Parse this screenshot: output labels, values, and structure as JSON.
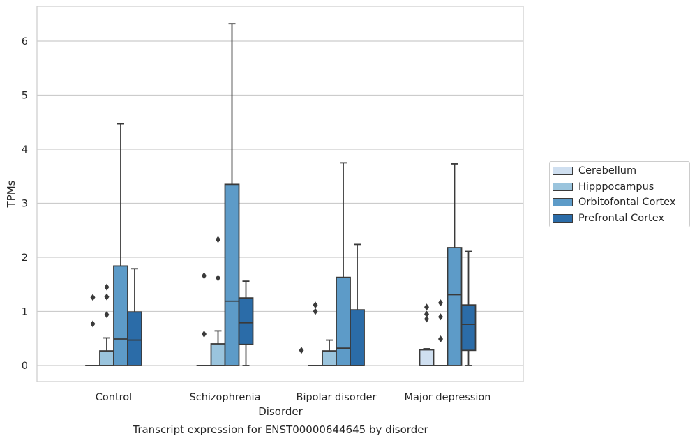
{
  "chart_data": {
    "type": "boxplot",
    "title": "Transcript expression for ENST00000644645 by disorder",
    "xlabel": "Disorder",
    "ylabel": "TPMs",
    "ylim": [
      -0.3,
      6.6
    ],
    "yticks": [
      0,
      1,
      2,
      3,
      4,
      5,
      6
    ],
    "grid": "horizontal",
    "legend_position": "right",
    "categories": [
      "Control",
      "Schizophrenia",
      "Bipolar disorder",
      "Major depression"
    ],
    "series": [
      {
        "name": "Cerebellum",
        "color": "#cfdff0",
        "boxes": [
          {
            "whislo": 0,
            "q1": 0,
            "med": 0,
            "q3": 0,
            "whishi": 0,
            "fliers": []
          },
          {
            "whislo": 0,
            "q1": 0,
            "med": 0,
            "q3": 0,
            "whishi": 0,
            "fliers": []
          },
          {
            "whislo": 0,
            "q1": 0,
            "med": 0,
            "q3": 0,
            "whishi": 0,
            "fliers": [
              0.28
            ]
          },
          {
            "whislo": 0,
            "q1": 0,
            "med": 0,
            "q3": 0.29,
            "whishi": 0.31,
            "fliers": []
          }
        ]
      },
      {
        "name": "Hipppocampus",
        "color": "#9ac4dd",
        "boxes": [
          {
            "whislo": 0,
            "q1": 0,
            "med": 0,
            "q3": 0.27,
            "whishi": 0.51,
            "fliers": [
              0.77,
              1.26
            ]
          },
          {
            "whislo": 0,
            "q1": 0,
            "med": 0,
            "q3": 0.4,
            "whishi": 0.64,
            "fliers": [
              0.58,
              1.66
            ]
          },
          {
            "whislo": 0,
            "q1": 0,
            "med": 0,
            "q3": 0.27,
            "whishi": 0.47,
            "fliers": [
              1.0,
              1.12
            ]
          },
          {
            "whislo": 0,
            "q1": 0,
            "med": 0,
            "q3": 0,
            "whishi": 0,
            "fliers": [
              0.86,
              0.95,
              1.08
            ]
          }
        ]
      },
      {
        "name": "Orbitofontal Cortex",
        "color": "#5d9bc8",
        "boxes": [
          {
            "whislo": 0,
            "q1": 0,
            "med": 0.49,
            "q3": 1.84,
            "whishi": 4.47,
            "fliers": [
              0.94,
              1.27,
              1.45
            ]
          },
          {
            "whislo": 0,
            "q1": 0,
            "med": 1.19,
            "q3": 3.35,
            "whishi": 6.32,
            "fliers": [
              1.62,
              2.33
            ]
          },
          {
            "whislo": 0,
            "q1": 0,
            "med": 0.32,
            "q3": 1.63,
            "whishi": 3.75,
            "fliers": []
          },
          {
            "whislo": 0,
            "q1": 0,
            "med": 1.31,
            "q3": 2.18,
            "whishi": 3.73,
            "fliers": [
              0.49,
              0.9,
              1.16
            ]
          }
        ]
      },
      {
        "name": "Prefrontal Cortex",
        "color": "#2b6ca8",
        "boxes": [
          {
            "whislo": 0,
            "q1": 0,
            "med": 0.47,
            "q3": 0.99,
            "whishi": 1.79,
            "fliers": []
          },
          {
            "whislo": 0,
            "q1": 0.39,
            "med": 0.79,
            "q3": 1.25,
            "whishi": 1.56,
            "fliers": []
          },
          {
            "whislo": 0,
            "q1": 0,
            "med": 0,
            "q3": 1.03,
            "whishi": 2.24,
            "fliers": []
          },
          {
            "whislo": 0,
            "q1": 0.28,
            "med": 0.76,
            "q3": 1.12,
            "whishi": 2.11,
            "fliers": []
          }
        ]
      }
    ]
  }
}
